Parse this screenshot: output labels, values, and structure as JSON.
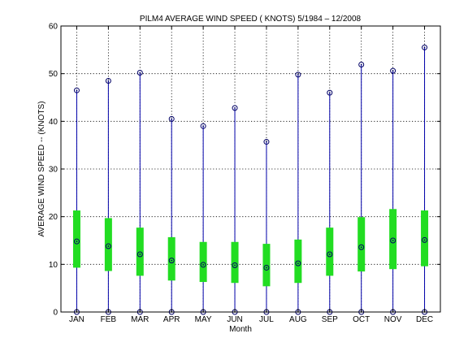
{
  "chart_data": {
    "type": "box",
    "title": "PILM4  AVERAGE WIND SPEED ( KNOTS) 5/1984 – 12/2008",
    "xlabel": "Month",
    "ylabel": "AVERAGE WIND SPEED -- (KNOTS)",
    "ylim": [
      0,
      60
    ],
    "yticks": [
      0,
      10,
      20,
      30,
      40,
      50,
      60
    ],
    "grid": true,
    "categories": [
      "JAN",
      "FEB",
      "MAR",
      "APR",
      "MAY",
      "JUN",
      "JUL",
      "AUG",
      "SEP",
      "OCT",
      "NOV",
      "DEC"
    ],
    "min": [
      0,
      0,
      0,
      0,
      0,
      0,
      0,
      0,
      0,
      0,
      0,
      0
    ],
    "max": [
      46.5,
      48.5,
      50.2,
      40.5,
      39.0,
      42.8,
      35.7,
      49.8,
      46.0,
      51.9,
      50.6,
      55.5
    ],
    "q1": [
      9.3,
      8.6,
      7.6,
      6.6,
      6.3,
      6.1,
      5.4,
      6.1,
      7.6,
      8.5,
      9.0,
      9.6
    ],
    "median": [
      14.8,
      13.8,
      12.1,
      10.8,
      9.9,
      9.8,
      9.3,
      10.2,
      12.1,
      13.6,
      15.0,
      15.1
    ],
    "q3": [
      21.3,
      19.7,
      17.7,
      15.7,
      14.7,
      14.7,
      14.3,
      15.2,
      17.7,
      19.9,
      21.6,
      21.3
    ],
    "colors": {
      "whisker": "#0000aa",
      "box": "#22dd22",
      "marker": "#000066",
      "axis": "#000000"
    }
  }
}
